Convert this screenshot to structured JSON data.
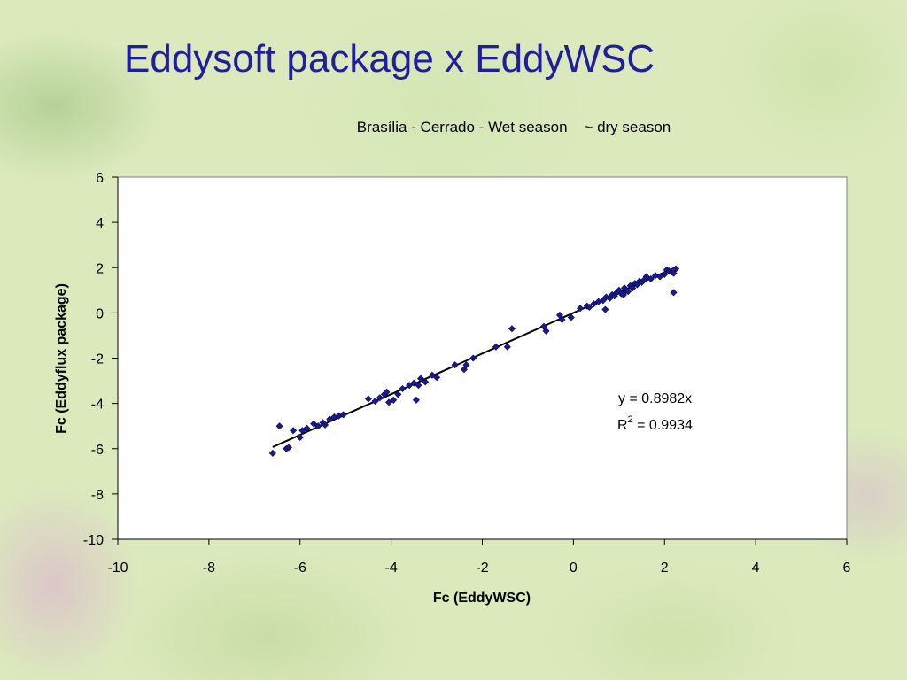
{
  "slide": {
    "title": "Eddysoft package x EddyWSC"
  },
  "chart_data": {
    "type": "scatter",
    "title": "Brasília - Cerrado - Wet season    ~ dry season",
    "xlabel": "Fc (EddyWSC)",
    "ylabel": "Fc (Eddyflux package)",
    "xlim": [
      -10,
      6
    ],
    "ylim": [
      -10,
      6
    ],
    "xticks": [
      -10,
      -8,
      -6,
      -4,
      -2,
      0,
      2,
      4,
      6
    ],
    "yticks": [
      6,
      4,
      2,
      0,
      -2,
      -4,
      -6,
      -8,
      -10
    ],
    "grid": false,
    "marker_color": "#1a1a8c",
    "trendline": {
      "slope": 0.8982,
      "x_range": [
        -6.6,
        2.2
      ]
    },
    "annotation": {
      "equation": "y = 0.8982x",
      "r_label": "R",
      "r_sup": "2",
      "r_value": " = 0.9934"
    },
    "series": [
      {
        "x": [
          -6.6,
          -6.45,
          -6.3,
          -6.25,
          -6.15,
          -6.0,
          -5.95,
          -5.85,
          -5.7,
          -5.6,
          -5.5,
          -5.45,
          -5.35,
          -5.25,
          -5.15,
          -5.05,
          -4.5,
          -4.35,
          -4.25,
          -4.15,
          -4.1,
          -4.05,
          -3.95,
          -3.85,
          -3.75,
          -3.6,
          -3.5,
          -3.45,
          -3.4,
          -3.35,
          -3.25,
          -3.1,
          -3.0,
          -2.6,
          -2.4,
          -2.35,
          -2.2,
          -1.7,
          -1.45,
          -1.35,
          -0.65,
          -0.6,
          -0.3,
          -0.25,
          -0.05,
          0.15,
          0.3,
          0.35,
          0.45,
          0.55,
          0.65,
          0.7,
          0.72,
          0.8,
          0.85,
          0.9,
          0.95,
          1.0,
          1.02,
          1.05,
          1.1,
          1.12,
          1.15,
          1.2,
          1.25,
          1.3,
          1.35,
          1.4,
          1.45,
          1.5,
          1.55,
          1.6,
          1.7,
          1.8,
          1.9,
          2.0,
          2.05,
          2.1,
          2.15,
          2.2,
          2.25,
          2.2
        ],
        "y": [
          -6.2,
          -5.0,
          -6.0,
          -5.95,
          -5.2,
          -5.5,
          -5.2,
          -5.1,
          -4.9,
          -5.0,
          -4.85,
          -4.95,
          -4.7,
          -4.6,
          -4.55,
          -4.5,
          -3.8,
          -3.9,
          -3.75,
          -3.6,
          -3.5,
          -3.95,
          -3.85,
          -3.6,
          -3.35,
          -3.2,
          -3.1,
          -3.85,
          -3.2,
          -2.9,
          -3.05,
          -2.75,
          -2.85,
          -2.3,
          -2.5,
          -2.3,
          -2.0,
          -1.5,
          -1.5,
          -0.7,
          -0.6,
          -0.8,
          -0.1,
          -0.3,
          -0.2,
          0.2,
          0.3,
          0.25,
          0.4,
          0.5,
          0.55,
          0.15,
          0.7,
          0.65,
          0.8,
          0.75,
          0.9,
          1.0,
          0.95,
          0.85,
          0.8,
          1.1,
          1.0,
          0.95,
          1.2,
          1.1,
          1.3,
          1.25,
          1.4,
          1.35,
          1.45,
          1.6,
          1.5,
          1.65,
          1.6,
          1.7,
          1.9,
          1.85,
          1.8,
          0.9,
          1.95,
          1.75
        ]
      }
    ]
  }
}
